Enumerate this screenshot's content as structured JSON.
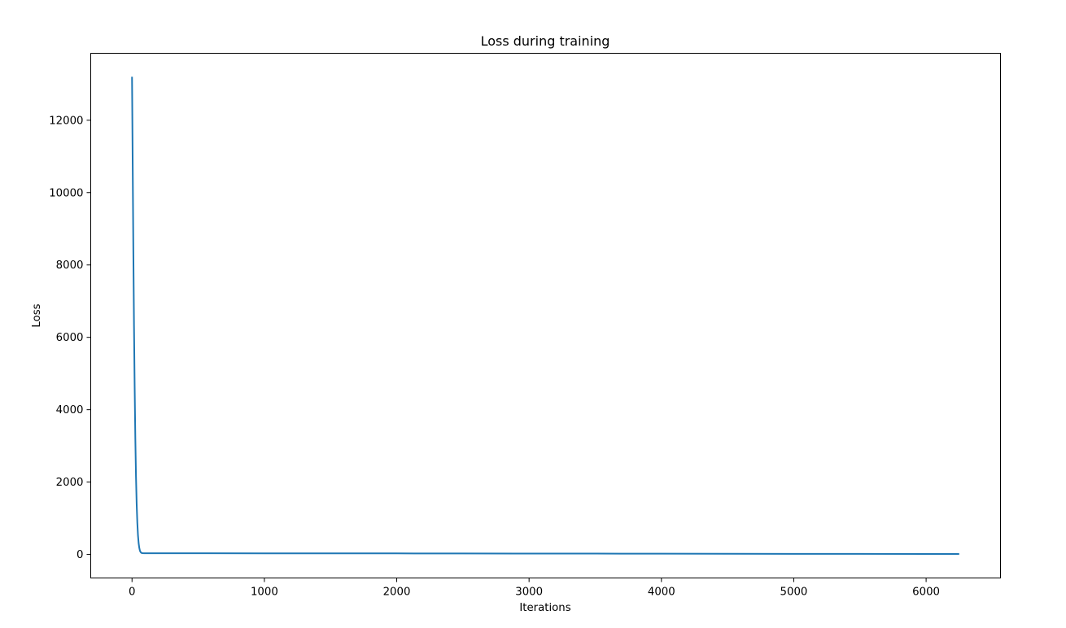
{
  "chart_data": {
    "type": "line",
    "title": "Loss during training",
    "xlabel": "Iterations",
    "ylabel": "Loss",
    "xlim": [
      -312,
      6562
    ],
    "ylim": [
      -650,
      13850
    ],
    "xticks": [
      0,
      1000,
      2000,
      3000,
      4000,
      5000,
      6000
    ],
    "yticks": [
      0,
      2000,
      4000,
      6000,
      8000,
      10000,
      12000
    ],
    "grid": false,
    "color": "#1f77b4",
    "series": [
      {
        "x": [
          0,
          5,
          10,
          15,
          20,
          25,
          30,
          35,
          40,
          45,
          50,
          55,
          60,
          65,
          70,
          75,
          80,
          90,
          100,
          150,
          200,
          500,
          1000,
          1500,
          2000,
          2500,
          3000,
          3500,
          4000,
          4500,
          5000,
          5500,
          6000,
          6250
        ],
        "y": [
          13200,
          10800,
          8400,
          6300,
          4600,
          3200,
          2150,
          1400,
          880,
          530,
          310,
          180,
          100,
          65,
          45,
          38,
          35,
          34,
          33,
          33,
          32,
          32,
          31,
          30,
          29,
          27,
          25,
          23,
          21,
          19,
          17,
          15,
          14,
          14
        ]
      }
    ]
  }
}
